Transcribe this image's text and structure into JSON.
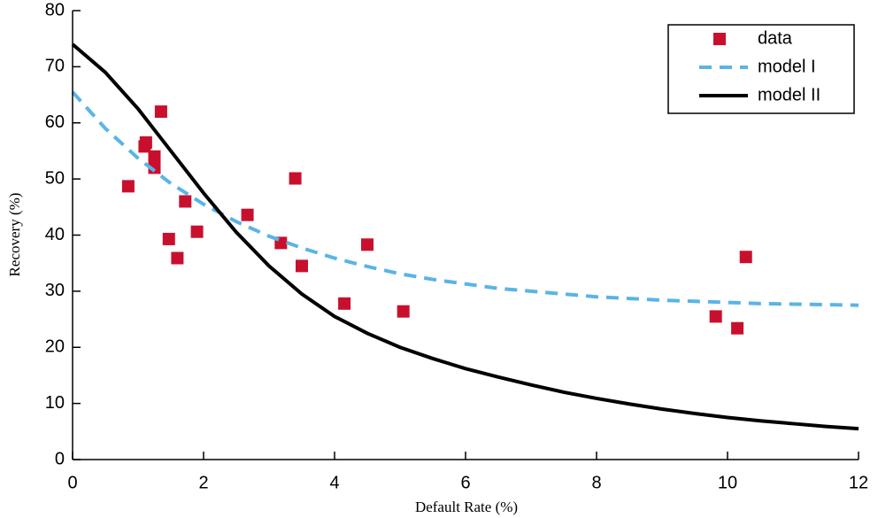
{
  "chart_data": {
    "type": "scatter",
    "xlabel": "Default Rate (%)",
    "ylabel": "Recovery (%)",
    "xlim": [
      0,
      12
    ],
    "ylim": [
      0,
      80
    ],
    "xticks": [
      0,
      2,
      4,
      6,
      8,
      10,
      12
    ],
    "yticks": [
      0,
      10,
      20,
      30,
      40,
      50,
      60,
      70,
      80
    ],
    "legend": "upper right",
    "series": [
      {
        "name": "data",
        "type": "scatter",
        "color": "#c8102e",
        "x": [
          0.85,
          1.1,
          1.12,
          1.25,
          1.25,
          1.35,
          1.47,
          1.6,
          1.72,
          1.9,
          2.67,
          3.18,
          3.4,
          3.5,
          4.15,
          4.5,
          5.05,
          9.82,
          10.15,
          10.28
        ],
        "values": [
          48.7,
          55.8,
          56.5,
          52,
          54,
          62,
          39.3,
          35.9,
          46,
          40.6,
          43.6,
          38.6,
          50.1,
          34.5,
          27.8,
          38.3,
          26.4,
          25.5,
          23.4,
          36.1
        ]
      },
      {
        "name": "model I",
        "type": "line",
        "dash": true,
        "color": "#5ab4e5",
        "x": [
          0,
          0.5,
          1,
          1.5,
          2,
          2.5,
          3,
          3.5,
          4,
          4.5,
          5,
          5.5,
          6,
          6.5,
          7,
          7.5,
          8,
          8.5,
          9,
          9.5,
          10,
          10.5,
          11,
          11.5,
          12
        ],
        "values": [
          65.5,
          59.0,
          53.7,
          49.2,
          45.5,
          42.4,
          39.8,
          37.7,
          35.9,
          34.4,
          33.1,
          32.1,
          31.3,
          30.5,
          30.0,
          29.5,
          29.0,
          28.7,
          28.4,
          28.2,
          28.0,
          27.8,
          27.7,
          27.6,
          27.5
        ]
      },
      {
        "name": "model II",
        "type": "line",
        "dash": false,
        "color": "#000000",
        "x": [
          0,
          0.5,
          1,
          1.5,
          2,
          2.5,
          3,
          3.5,
          4,
          4.5,
          5,
          5.5,
          6,
          6.5,
          7,
          7.5,
          8,
          8.5,
          9,
          9.5,
          10,
          10.5,
          11,
          11.5,
          12
        ],
        "values": [
          74,
          69,
          62.5,
          55,
          47.5,
          40.5,
          34.5,
          29.5,
          25.5,
          22.5,
          20,
          18,
          16.2,
          14.7,
          13.3,
          12,
          10.9,
          9.9,
          9.0,
          8.2,
          7.5,
          6.9,
          6.4,
          5.9,
          5.5
        ]
      }
    ]
  }
}
